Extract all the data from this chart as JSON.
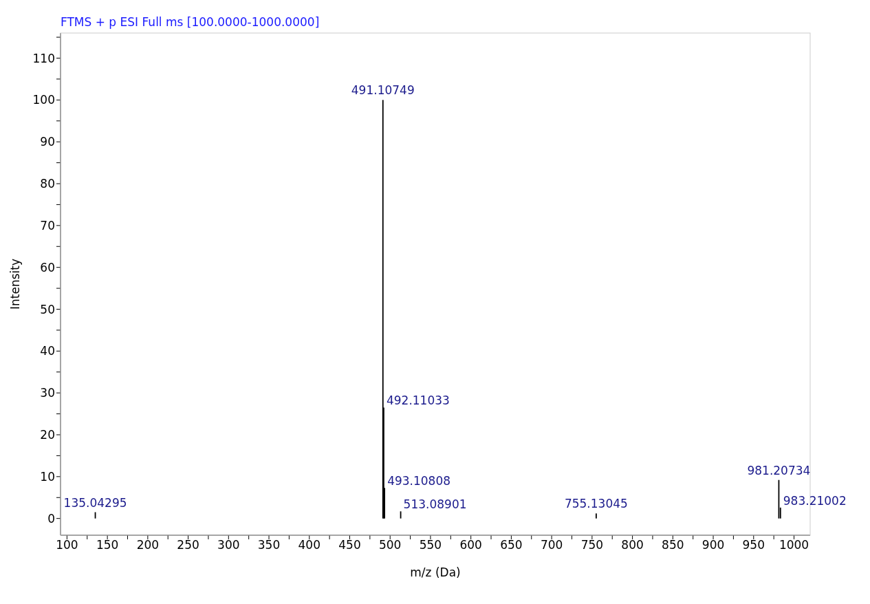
{
  "chart_data": {
    "type": "bar",
    "title": "FTMS + p ESI Full ms [100.0000-1000.0000]",
    "xlabel": "m/z (Da)",
    "ylabel": "Intensity",
    "color": "#000000",
    "x": [
      135.04295,
      491.10749,
      492.11033,
      493.10808,
      513.08901,
      755.13045,
      981.20734,
      983.21002
    ],
    "values": [
      1.5,
      100,
      26.5,
      7.3,
      1.7,
      1.2,
      9.2,
      2.6
    ],
    "annotations": [
      {
        "text": "135.04295",
        "x": 135.04295,
        "y": 1.5
      },
      {
        "text": "491.10749",
        "x": 491.10749,
        "y": 100
      },
      {
        "text": "492.11033",
        "x": 492.11033,
        "y": 26.5
      },
      {
        "text": "493.10808",
        "x": 493.10808,
        "y": 7.3
      },
      {
        "text": "513.08901",
        "x": 513.08901,
        "y": 1.7
      },
      {
        "text": "755.13045",
        "x": 755.13045,
        "y": 1.2
      },
      {
        "text": "981.20734",
        "x": 981.20734,
        "y": 9.2
      },
      {
        "text": "983.21002",
        "x": 983.21002,
        "y": 2.6
      }
    ],
    "xlim": [
      92,
      1020
    ],
    "xticks": [
      100,
      {
        "value": 125,
        "label": null
      },
      150,
      {
        "value": 175,
        "label": null
      },
      200,
      {
        "value": 225,
        "label": null
      },
      250,
      {
        "value": 275,
        "label": null
      },
      300,
      {
        "value": 325,
        "label": null
      },
      350,
      {
        "value": 375,
        "label": null
      },
      400,
      {
        "value": 425,
        "label": null
      },
      450,
      {
        "value": 475,
        "label": null
      },
      500,
      {
        "value": 525,
        "label": null
      },
      550,
      {
        "value": 575,
        "label": null
      },
      600,
      {
        "value": 625,
        "label": null
      },
      650,
      {
        "value": 675,
        "label": null
      },
      700,
      {
        "value": 725,
        "label": null
      },
      750,
      {
        "value": 775,
        "label": null
      },
      800,
      {
        "value": 825,
        "label": null
      },
      850,
      {
        "value": 875,
        "label": null
      },
      900,
      {
        "value": 925,
        "label": null
      },
      950,
      {
        "value": 975,
        "label": null
      },
      1000
    ],
    "ylim": [
      -4,
      116
    ],
    "yticks": [
      0,
      {
        "value": 5,
        "label": null
      },
      10,
      {
        "value": 15,
        "label": null
      },
      20,
      {
        "value": 25,
        "label": null
      },
      30,
      {
        "value": 35,
        "label": null
      },
      40,
      {
        "value": 45,
        "label": null
      },
      50,
      {
        "value": 55,
        "label": null
      },
      60,
      {
        "value": 65,
        "label": null
      },
      70,
      {
        "value": 75,
        "label": null
      },
      80,
      {
        "value": 85,
        "label": null
      },
      90,
      {
        "value": 95,
        "label": null
      },
      100,
      {
        "value": 105,
        "label": null
      },
      110,
      {
        "value": 115,
        "label": null
      }
    ],
    "grid": false
  }
}
